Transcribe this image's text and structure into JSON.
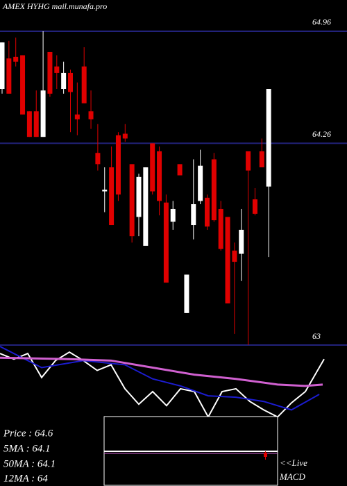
{
  "chart_data": [
    {
      "type": "candlestick",
      "title": "AMEX  HYHG mail.munafa.pro",
      "open": [
        64.6,
        64.79,
        64.8,
        64.81,
        64.46,
        64.46,
        64.3,
        64.83,
        64.74,
        64.6,
        64.7,
        64.44,
        64.74,
        64.46,
        64.2,
        63.96,
        64.11,
        64.31,
        64.32,
        64.13,
        63.8,
        63.62,
        64.26,
        64.21,
        63.89,
        63.77,
        64.13,
        63.2,
        63.75,
        63.9,
        63.92,
        64.16,
        63.85,
        63.8,
        63.59,
        63.57,
        64.21,
        63.91,
        64.21,
        63.99
      ],
      "high": [
        64.89,
        64.9,
        64.92,
        64.81,
        64.46,
        64.59,
        64.96,
        64.83,
        64.81,
        64.77,
        64.72,
        64.64,
        64.86,
        64.59,
        64.38,
        64.11,
        64.24,
        64.33,
        64.38,
        64.13,
        64.07,
        64.11,
        64.26,
        64.24,
        63.94,
        63.9,
        64.13,
        63.44,
        64.16,
        64.22,
        63.94,
        64.2,
        63.9,
        63.8,
        63.64,
        63.85,
        64.21,
        63.98,
        64.29,
        64.6
      ],
      "low": [
        64.57,
        64.57,
        64.74,
        64.44,
        64.3,
        64.3,
        64.3,
        64.55,
        64.6,
        64.57,
        64.33,
        64.31,
        64.51,
        64.35,
        64.09,
        63.83,
        63.75,
        63.9,
        64.27,
        63.64,
        63.68,
        63.62,
        63.94,
        63.81,
        63.39,
        63.72,
        64.06,
        63.2,
        63.66,
        63.88,
        63.72,
        63.77,
        63.59,
        63.26,
        63.07,
        63.4,
        63.0,
        63.81,
        64.11,
        63.55
      ],
      "close": [
        64.89,
        64.57,
        64.77,
        64.44,
        64.3,
        64.3,
        64.59,
        64.57,
        64.7,
        64.7,
        64.58,
        64.41,
        64.51,
        64.41,
        64.13,
        63.97,
        63.75,
        63.94,
        64.29,
        63.68,
        64.05,
        64.11,
        63.96,
        63.9,
        63.39,
        63.85,
        64.06,
        63.44,
        63.88,
        64.12,
        63.74,
        63.78,
        63.6,
        63.26,
        63.52,
        63.72,
        64.09,
        63.82,
        64.11,
        64.6
      ],
      "up_color": "#ffffff",
      "down_color": "#e00000",
      "grid_color": "#22227a",
      "ylim": [
        63,
        65.155
      ],
      "yticks": [
        63,
        64.26,
        64.96
      ]
    },
    {
      "type": "line",
      "xlim": [
        0,
        470
      ],
      "ylim": [
        0,
        100
      ],
      "series": [
        {
          "color": "#ffffff",
          "x": [
            0,
            20,
            40,
            60,
            80,
            100,
            120,
            140,
            160,
            180,
            200,
            220,
            240,
            260,
            280,
            300,
            320,
            340,
            360,
            380,
            400,
            420,
            440,
            467
          ],
          "values": [
            94,
            90,
            94,
            77,
            89,
            95,
            89,
            82,
            86,
            69,
            58,
            67,
            57,
            69,
            67,
            49,
            67,
            69,
            60,
            54,
            49,
            59,
            67,
            90
          ]
        },
        {
          "color": "#1c1cd0",
          "x": [
            0,
            60,
            120,
            180,
            220,
            260,
            300,
            340,
            380,
            420,
            460
          ],
          "values": [
            99,
            84,
            89,
            86,
            76,
            71,
            64,
            63,
            60,
            54,
            65
          ]
        },
        {
          "color": "#d060d0",
          "x": [
            0,
            100,
            160,
            220,
            280,
            340,
            400,
            440,
            465
          ],
          "values": [
            91,
            90,
            89,
            84,
            79,
            76,
            72,
            71,
            72
          ]
        }
      ]
    }
  ],
  "info": [
    "Price   : 64.6",
    "5MA   : 64.1",
    "50MA  : 64.1",
    "12MA  : 64"
  ],
  "live": "<<Live",
  "macd": "MACD"
}
